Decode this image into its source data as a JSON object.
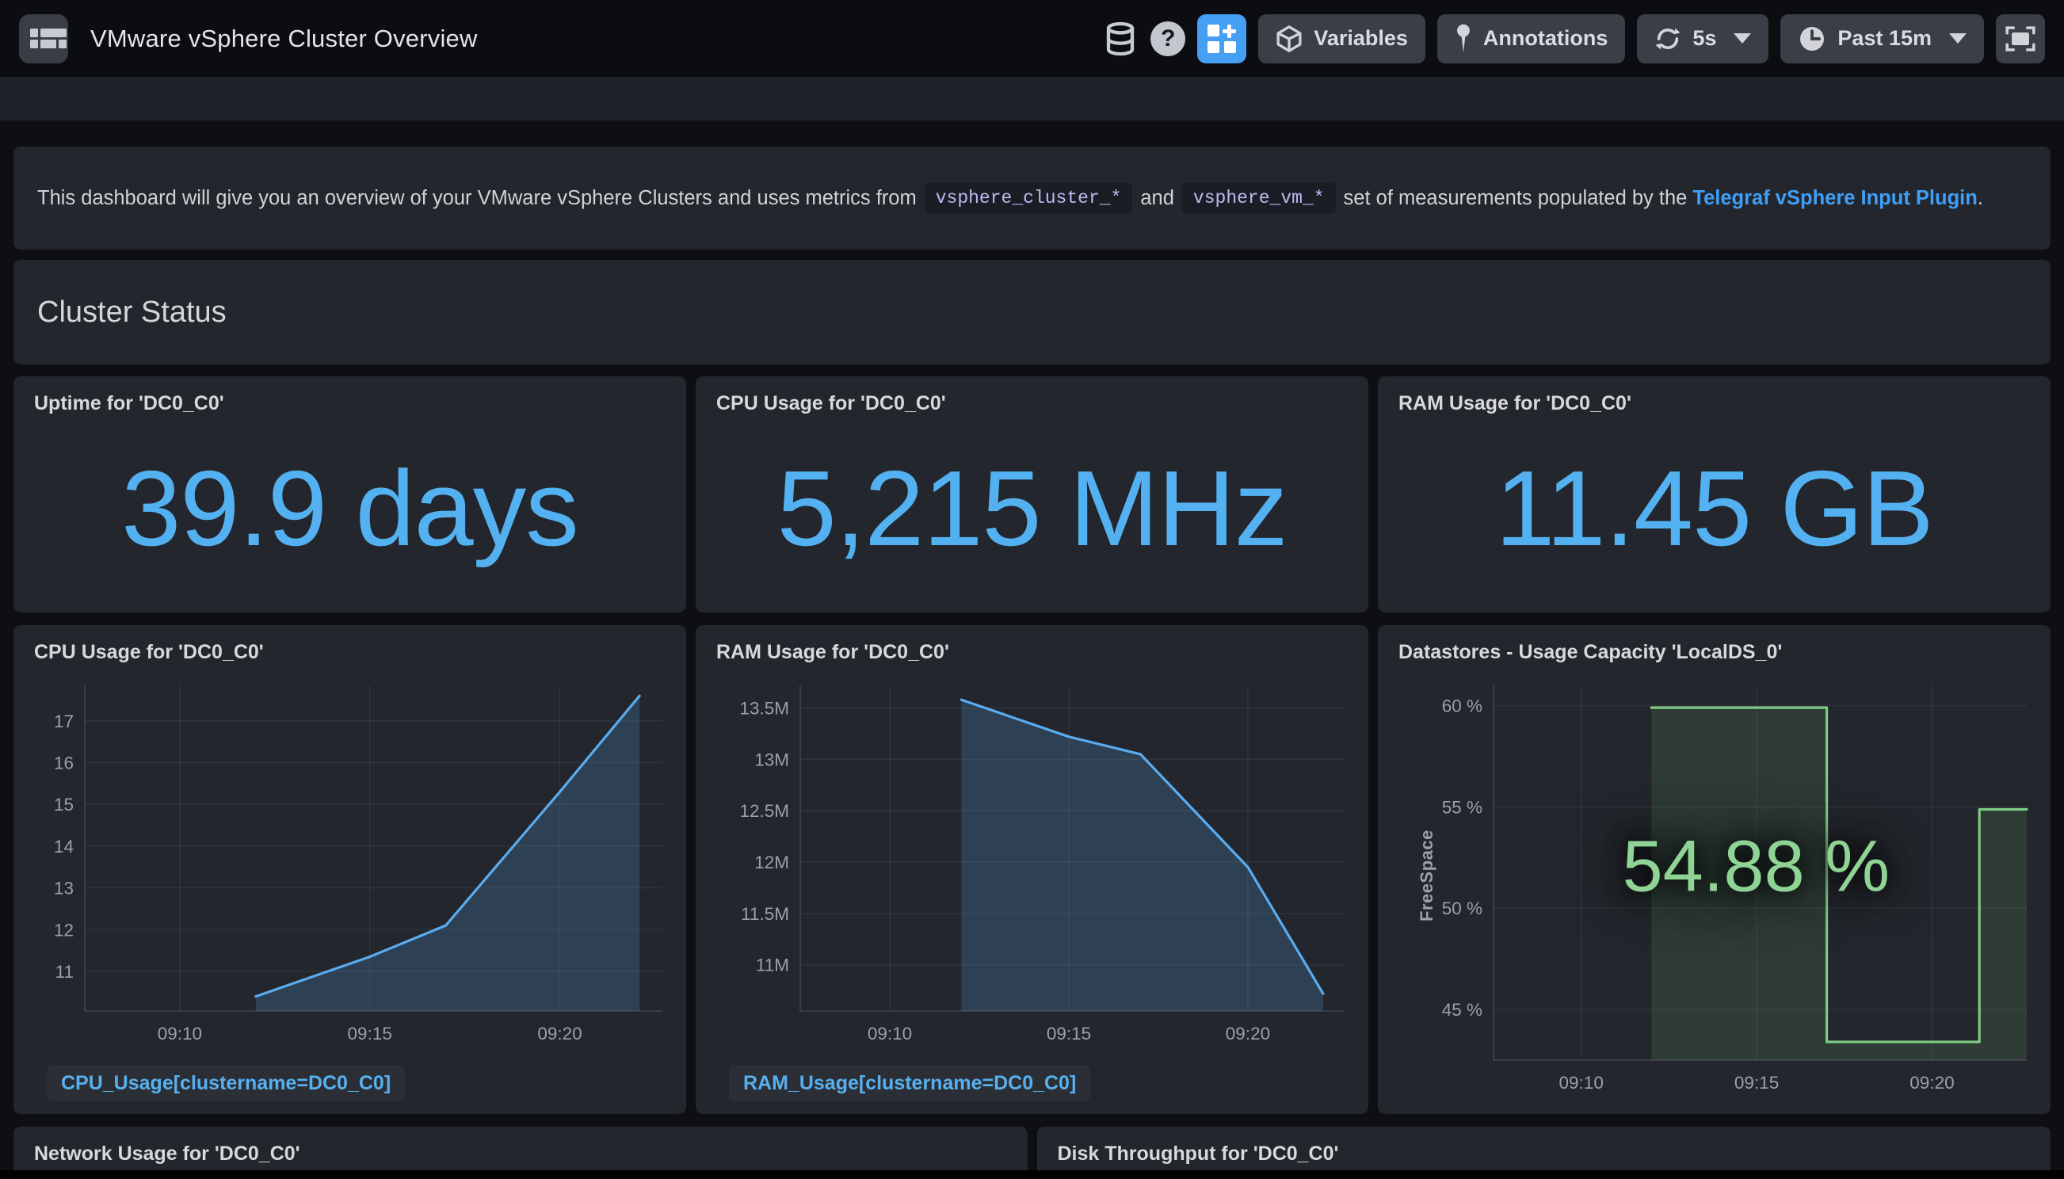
{
  "navbar": {
    "title": "VMware vSphere Cluster Overview",
    "variables_label": "Variables",
    "annotations_label": "Annotations",
    "refresh_interval": "5s",
    "time_range": "Past 15m",
    "help_glyph": "?"
  },
  "description": {
    "text_before": "This dashboard will give you an overview of your VMware vSphere Clusters and uses metrics from",
    "code1": "vsphere_cluster_*",
    "text_mid": "and",
    "code2": "vsphere_vm_*",
    "text_after": "set of measurements populated by the",
    "link": "Telegraf vSphere Input Plugin",
    "text_end": "."
  },
  "section": {
    "title": "Cluster Status"
  },
  "stat_panels": [
    {
      "title": "Uptime for 'DC0_C0'",
      "value": "39.9 days"
    },
    {
      "title": "CPU Usage for 'DC0_C0'",
      "value": "5,215 MHz"
    },
    {
      "title": "RAM Usage for 'DC0_C0'",
      "value": "11.45 GB"
    }
  ],
  "bottom_panels": [
    {
      "title": "Network Usage for 'DC0_C0'"
    },
    {
      "title": "Disk Throughput for 'DC0_C0'"
    }
  ],
  "colors": {
    "stat_blue": "#54b1f1",
    "line_blue": "#59acf0",
    "fill_blue": "rgba(89,172,240,0.20)",
    "line_green": "#7ecb84",
    "fill_green": "rgba(126,203,132,0.13)",
    "value_green": "#8fd494",
    "grid": "rgba(204,204,220,0.08)",
    "axis": "rgba(204,204,220,0.18)",
    "tick_text": "#9aa0ab",
    "accent_blue_button": "#459ff3",
    "panel_bg": "#23262c",
    "page_bg": "#0e0f13"
  },
  "chart_data": [
    {
      "type": "area",
      "panel_title": "CPU Usage for 'DC0_C0'",
      "legend": "CPU_Usage[clustername=DC0_C0]",
      "xlabel": "time",
      "ylabel": "",
      "x_unit": "minutes past 09:00",
      "xlim": [
        7.5,
        22.7
      ],
      "ylim": [
        10.05,
        17.85
      ],
      "x_ticks": [
        {
          "v": 10,
          "label": "09:10"
        },
        {
          "v": 15,
          "label": "09:15"
        },
        {
          "v": 20,
          "label": "09:20"
        }
      ],
      "y_ticks": [
        {
          "v": 11,
          "label": "11"
        },
        {
          "v": 12,
          "label": "12"
        },
        {
          "v": 13,
          "label": "13"
        },
        {
          "v": 14,
          "label": "14"
        },
        {
          "v": 15,
          "label": "15"
        },
        {
          "v": 16,
          "label": "16"
        },
        {
          "v": 17,
          "label": "17"
        }
      ],
      "points": [
        [
          12,
          10.4
        ],
        [
          15,
          11.35
        ],
        [
          17,
          12.1
        ],
        [
          20,
          15.3
        ],
        [
          22.1,
          17.6
        ]
      ],
      "line_color": "#59acf0",
      "fill_color": "rgba(89,172,240,0.20)",
      "grid": true,
      "legend_position": "bottom-left"
    },
    {
      "type": "area",
      "panel_title": "RAM Usage for 'DC0_C0'",
      "legend": "RAM_Usage[clustername=DC0_C0]",
      "xlabel": "time",
      "ylabel": "",
      "x_unit": "minutes past 09:00",
      "xlim": [
        7.5,
        22.7
      ],
      "ylim": [
        10550000,
        13720000
      ],
      "x_ticks": [
        {
          "v": 10,
          "label": "09:10"
        },
        {
          "v": 15,
          "label": "09:15"
        },
        {
          "v": 20,
          "label": "09:20"
        }
      ],
      "y_ticks": [
        {
          "v": 11000000,
          "label": "11M"
        },
        {
          "v": 11500000,
          "label": "11.5M"
        },
        {
          "v": 12000000,
          "label": "12M"
        },
        {
          "v": 12500000,
          "label": "12.5M"
        },
        {
          "v": 13000000,
          "label": "13M"
        },
        {
          "v": 13500000,
          "label": "13.5M"
        }
      ],
      "points": [
        [
          12,
          13580000
        ],
        [
          15,
          13220000
        ],
        [
          17,
          13050000
        ],
        [
          20,
          11950000
        ],
        [
          22.1,
          10720000
        ]
      ],
      "line_color": "#59acf0",
      "fill_color": "rgba(89,172,240,0.20)",
      "grid": true,
      "legend_position": "bottom-left"
    },
    {
      "type": "step-area",
      "panel_title": "Datastores - Usage Capacity 'LocalDS_0'",
      "legend": null,
      "center_value": "54.88 %",
      "xlabel": "time",
      "ylabel": "FreeSpace",
      "x_unit": "minutes past 09:00",
      "xlim": [
        7.5,
        22.7
      ],
      "ylim": [
        42.5,
        61.0
      ],
      "x_ticks": [
        {
          "v": 10,
          "label": "09:10"
        },
        {
          "v": 15,
          "label": "09:15"
        },
        {
          "v": 20,
          "label": "09:20"
        }
      ],
      "y_ticks": [
        {
          "v": 45,
          "label": "45 %"
        },
        {
          "v": 50,
          "label": "50 %"
        },
        {
          "v": 55,
          "label": "55 %"
        },
        {
          "v": 60,
          "label": "60 %"
        }
      ],
      "points": [
        [
          12,
          59.9
        ],
        [
          17,
          59.9
        ],
        [
          17,
          43.4
        ],
        [
          21.35,
          43.4
        ],
        [
          21.35,
          54.88
        ],
        [
          22.7,
          54.88
        ]
      ],
      "line_color": "#7ecb84",
      "fill_color": "rgba(126,203,132,0.13)",
      "grid": true,
      "legend_position": "none"
    }
  ]
}
